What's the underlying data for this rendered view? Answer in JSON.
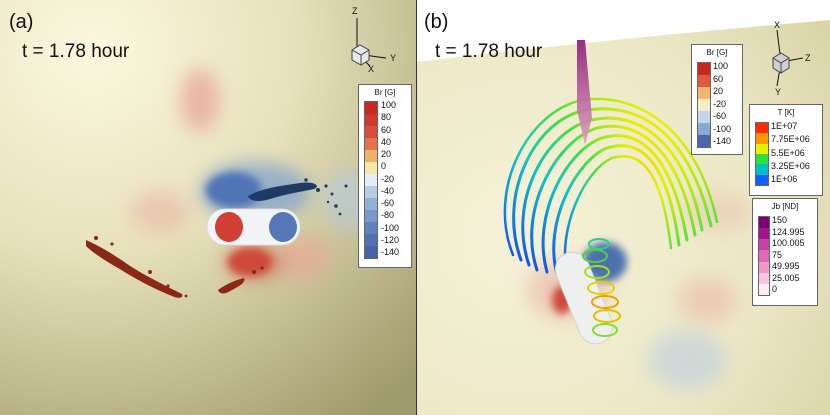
{
  "panel_a": {
    "label": "(a)",
    "time": "t = 1.78 hour",
    "axes": {
      "z": "Z",
      "y": "Y",
      "x": "X"
    },
    "legend": {
      "title": "Br [G]",
      "ticks": [
        "100",
        "80",
        "60",
        "40",
        "20",
        "0",
        "-20",
        "-40",
        "-60",
        "-80",
        "-100",
        "-120",
        "-140"
      ],
      "colors": [
        "#c8281e",
        "#d0392c",
        "#d84d3c",
        "#e2744f",
        "#f0b06a",
        "#f6e7a6",
        "#e4eef4",
        "#b8cde2",
        "#92b2d5",
        "#7899c9",
        "#6282bd",
        "#5372b2",
        "#4565a8"
      ]
    }
  },
  "panel_b": {
    "label": "(b)",
    "time": "t = 1.78 hour",
    "axes": {
      "x": "X",
      "z": "Z",
      "y": "Y"
    },
    "legend_br": {
      "title": "Br [G]",
      "ticks": [
        "100",
        "60",
        "20",
        "-20",
        "-60",
        "-100",
        "-140"
      ],
      "colors": [
        "#c8281e",
        "#dc5a40",
        "#f1b86c",
        "#f6edc6",
        "#c4d7e8",
        "#8aaad2",
        "#4a69ab"
      ]
    },
    "legend_t": {
      "title": "T [K]",
      "ticks": [
        "1E+07",
        "7.75E+06",
        "5.5E+06",
        "3.25E+06",
        "1E+06"
      ],
      "colors": [
        "#ff2a00",
        "#ff9800",
        "#e6f000",
        "#30e040",
        "#00c0c0",
        "#1060ff"
      ]
    },
    "legend_jb": {
      "title": "Jb [ND]",
      "ticks": [
        "150",
        "124.995",
        "100.005",
        "75",
        "49.995",
        "25.005",
        "0"
      ],
      "colors": [
        "#7a0078",
        "#a3138f",
        "#c93fa3",
        "#e06ab5",
        "#ee9ac9",
        "#f7c6de",
        "#fdeef4"
      ]
    }
  }
}
